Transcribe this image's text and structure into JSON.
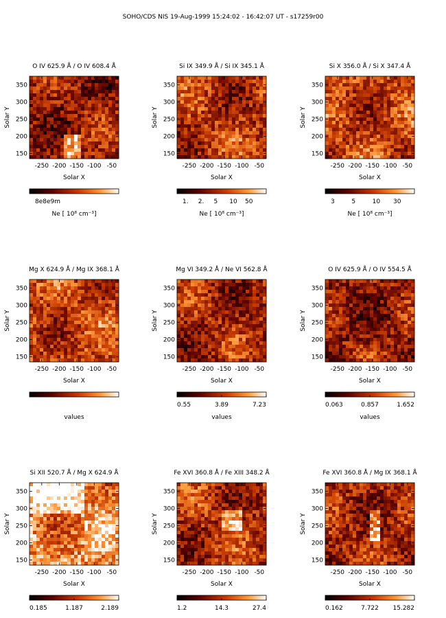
{
  "header": {
    "title": "SOHO/CDS NIS  19-Aug-1999 15:24:02 - 16:42:07 UT - s17259r00"
  },
  "colors": {
    "cmap_low": "#000000",
    "cmap_mid1": "#5a0000",
    "cmap_mid2": "#c83c00",
    "cmap_mid3": "#ff9a3c",
    "cmap_high": "#ffffff",
    "text": "#000000"
  },
  "chart_data": [
    {
      "type": "heatmap",
      "title": "O IV  625.9 Å / O IV  608.4 Å",
      "xlabel": "Solar X",
      "ylabel": "Solar Y",
      "xlim": [
        -285,
        -30
      ],
      "ylim": [
        135,
        375
      ],
      "xticks": [
        -250,
        -200,
        -150,
        -100,
        -50
      ],
      "yticks": [
        150,
        200,
        250,
        300,
        350
      ],
      "colorbar": {
        "label": "Ne  [ 10⁸  cm⁻³]",
        "ticks": [
          "8e8e9m"
        ],
        "log": true
      }
    },
    {
      "type": "heatmap",
      "title": "Si IX  349.9 Å / Si IX  345.1 Å",
      "xlabel": "Solar X",
      "ylabel": "Solar Y",
      "xlim": [
        -285,
        -30
      ],
      "ylim": [
        135,
        375
      ],
      "xticks": [
        -250,
        -200,
        -150,
        -100,
        -50
      ],
      "yticks": [
        150,
        200,
        250,
        300,
        350
      ],
      "colorbar": {
        "label": "Ne  [ 10⁸  cm⁻³]",
        "ticks": [
          "1.",
          "2.",
          "5",
          "10",
          "50"
        ],
        "log": true
      }
    },
    {
      "type": "heatmap",
      "title": "Si X  356.0 Å / Si X  347.4 Å",
      "xlabel": "Solar X",
      "ylabel": "Solar Y",
      "xlim": [
        -285,
        -30
      ],
      "ylim": [
        135,
        375
      ],
      "xticks": [
        -250,
        -200,
        -150,
        -100,
        -50
      ],
      "yticks": [
        150,
        200,
        250,
        300,
        350
      ],
      "colorbar": {
        "label": "Ne  [ 10⁸  cm⁻³]",
        "ticks": [
          "3",
          "5",
          "10",
          "30"
        ],
        "log": true
      }
    },
    {
      "type": "heatmap",
      "title": "Mg X  624.9 Å / Mg IX  368.1 Å",
      "xlabel": "Solar X",
      "ylabel": "Solar Y",
      "xlim": [
        -285,
        -30
      ],
      "ylim": [
        135,
        375
      ],
      "xticks": [
        -250,
        -200,
        -150,
        -100,
        -50
      ],
      "yticks": [
        150,
        200,
        250,
        300,
        350
      ],
      "colorbar": {
        "label": "values",
        "ticks": [],
        "log": false
      }
    },
    {
      "type": "heatmap",
      "title": "Mg VI  349.2 Å / Ne VI  562.8 Å",
      "xlabel": "Solar X",
      "ylabel": "Solar Y",
      "xlim": [
        -285,
        -30
      ],
      "ylim": [
        135,
        375
      ],
      "xticks": [
        -250,
        -200,
        -150,
        -100,
        -50
      ],
      "yticks": [
        150,
        200,
        250,
        300,
        350
      ],
      "colorbar": {
        "label": "values",
        "ticks": [
          "0.55",
          "3.89",
          "7.23"
        ],
        "log": false
      }
    },
    {
      "type": "heatmap",
      "title": "O IV  625.9 Å / O IV  554.5 Å",
      "xlabel": "Solar X",
      "ylabel": "Solar Y",
      "xlim": [
        -285,
        -30
      ],
      "ylim": [
        135,
        375
      ],
      "xticks": [
        -250,
        -200,
        -150,
        -100,
        -50
      ],
      "yticks": [
        150,
        200,
        250,
        300,
        350
      ],
      "colorbar": {
        "label": "values",
        "ticks": [
          "0.063",
          "0.857",
          "1.652"
        ],
        "log": false
      }
    },
    {
      "type": "heatmap",
      "title": "Si XII  520.7 Å / Mg X  624.9 Å",
      "xlabel": "Solar X",
      "ylabel": "Solar Y",
      "xlim": [
        -285,
        -30
      ],
      "ylim": [
        135,
        375
      ],
      "xticks": [
        -250,
        -200,
        -150,
        -100,
        -50
      ],
      "yticks": [
        150,
        200,
        250,
        300,
        350
      ],
      "colorbar": {
        "label": "",
        "ticks": [
          "0.185",
          "1.187",
          "2.189"
        ],
        "log": false
      }
    },
    {
      "type": "heatmap",
      "title": "Fe XVI  360.8 Å / Fe XIII  348.2 Å",
      "xlabel": "Solar X",
      "ylabel": "Solar Y",
      "xlim": [
        -285,
        -30
      ],
      "ylim": [
        135,
        375
      ],
      "xticks": [
        -250,
        -200,
        -150,
        -100,
        -50
      ],
      "yticks": [
        150,
        200,
        250,
        300,
        350
      ],
      "colorbar": {
        "label": "",
        "ticks": [
          "1.2",
          "14.3",
          "27.4"
        ],
        "log": false
      }
    },
    {
      "type": "heatmap",
      "title": "Fe XVI  360.8 Å / Mg IX  368.1 Å",
      "xlabel": "Solar X",
      "ylabel": "Solar Y",
      "xlim": [
        -285,
        -30
      ],
      "ylim": [
        135,
        375
      ],
      "xticks": [
        -250,
        -200,
        -150,
        -100,
        -50
      ],
      "yticks": [
        150,
        200,
        250,
        300,
        350
      ],
      "colorbar": {
        "label": "",
        "ticks": [
          "0.162",
          "7.722",
          "15.282"
        ],
        "log": false
      }
    }
  ]
}
